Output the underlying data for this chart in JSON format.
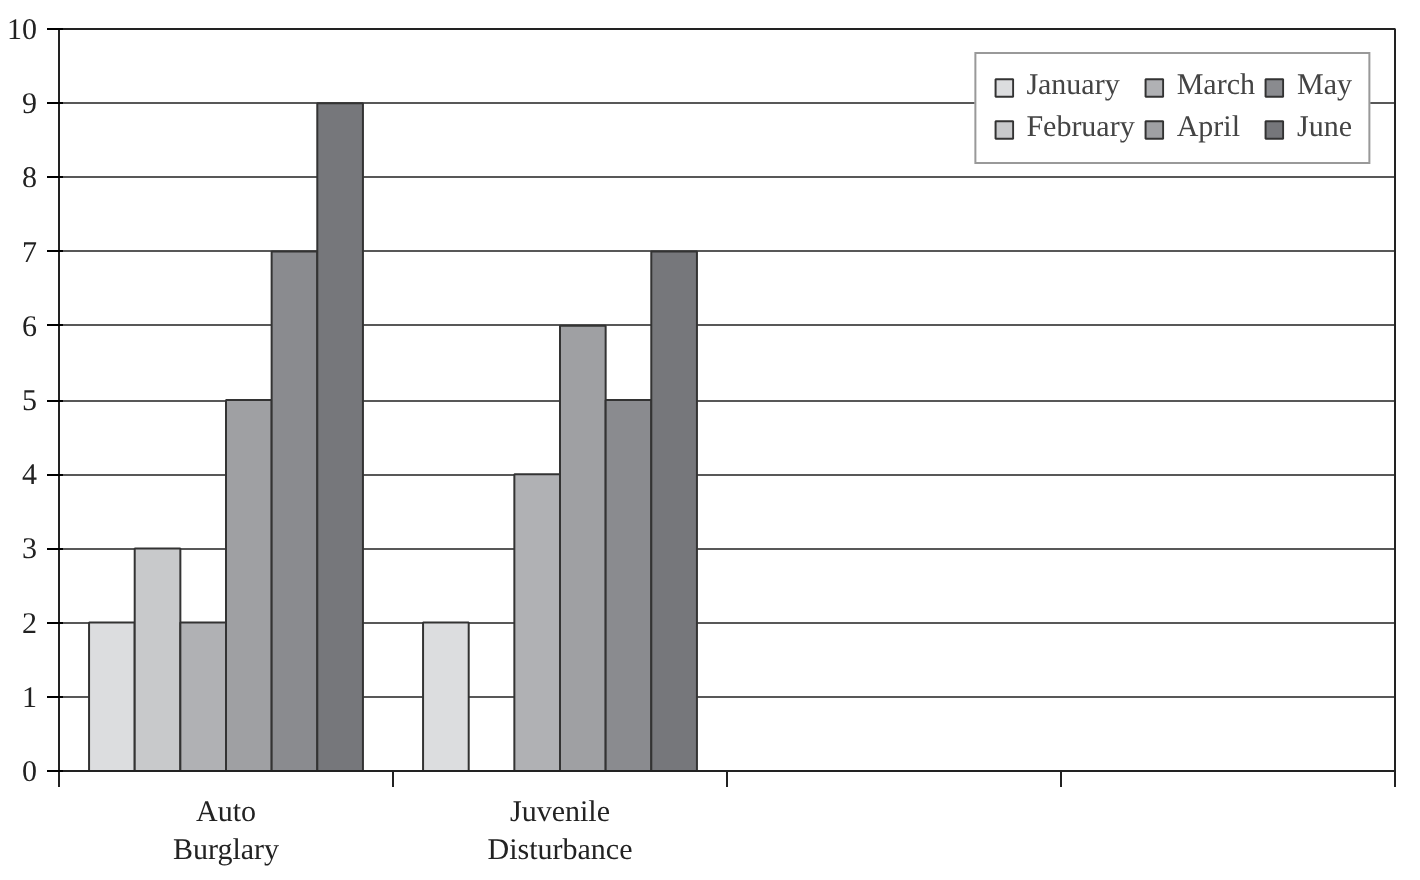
{
  "chart_data": {
    "type": "bar",
    "categories": [
      "Auto Burglary",
      "Juvenile Disturbance",
      null,
      null
    ],
    "series": [
      {
        "name": "January",
        "color": "#dcdddf",
        "values": [
          2,
          2,
          null,
          null
        ]
      },
      {
        "name": "February",
        "color": "#c8c9cb",
        "values": [
          3,
          null,
          null,
          null
        ]
      },
      {
        "name": "March",
        "color": "#b0b1b4",
        "values": [
          2,
          4,
          null,
          null
        ]
      },
      {
        "name": "April",
        "color": "#9fa0a3",
        "values": [
          5,
          6,
          null,
          null
        ]
      },
      {
        "name": "May",
        "color": "#8a8b8f",
        "values": [
          7,
          5,
          null,
          null
        ]
      },
      {
        "name": "June",
        "color": "#76777b",
        "values": [
          9,
          7,
          null,
          null
        ]
      }
    ],
    "ylim": [
      0,
      10
    ],
    "yticks": [
      0,
      1,
      2,
      3,
      4,
      5,
      6,
      7,
      8,
      9,
      10
    ],
    "grid": "y",
    "legend": "top right"
  }
}
